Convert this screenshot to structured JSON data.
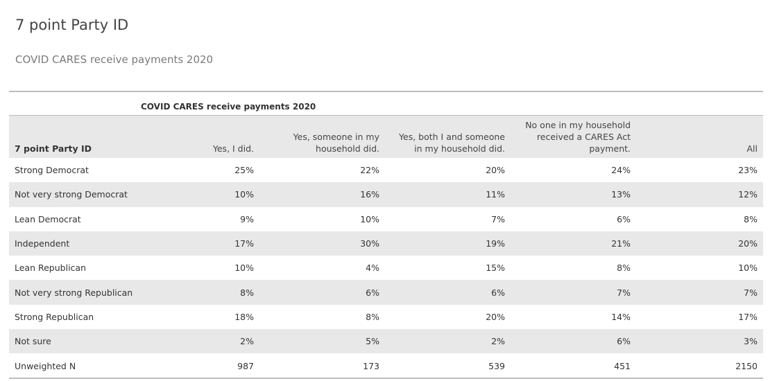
{
  "title": "7 point Party ID",
  "subtitle": "COVID CARES receive payments 2020",
  "table": {
    "group_label": "COVID CARES receive payments 2020",
    "headers": [
      "7 point Party ID",
      "Yes, I did.",
      "Yes, someone in my household did.",
      "Yes, both I and someone in my household did.",
      "No one in my household received a CARES Act payment.",
      "All"
    ],
    "rows": [
      [
        "Strong Democrat",
        "25%",
        "22%",
        "20%",
        "24%",
        "23%"
      ],
      [
        "Not very strong Democrat",
        "10%",
        "16%",
        "11%",
        "13%",
        "12%"
      ],
      [
        "Lean Democrat",
        "9%",
        "10%",
        "7%",
        "6%",
        "8%"
      ],
      [
        "Independent",
        "17%",
        "30%",
        "19%",
        "21%",
        "20%"
      ],
      [
        "Lean Republican",
        "10%",
        "4%",
        "15%",
        "8%",
        "10%"
      ],
      [
        "Not very strong Republican",
        "8%",
        "6%",
        "6%",
        "7%",
        "7%"
      ],
      [
        "Strong Republican",
        "18%",
        "8%",
        "20%",
        "14%",
        "17%"
      ],
      [
        "Not sure",
        "2%",
        "5%",
        "2%",
        "6%",
        "3%"
      ],
      [
        "Unweighted N",
        "987",
        "173",
        "539",
        "451",
        "2150"
      ]
    ]
  }
}
